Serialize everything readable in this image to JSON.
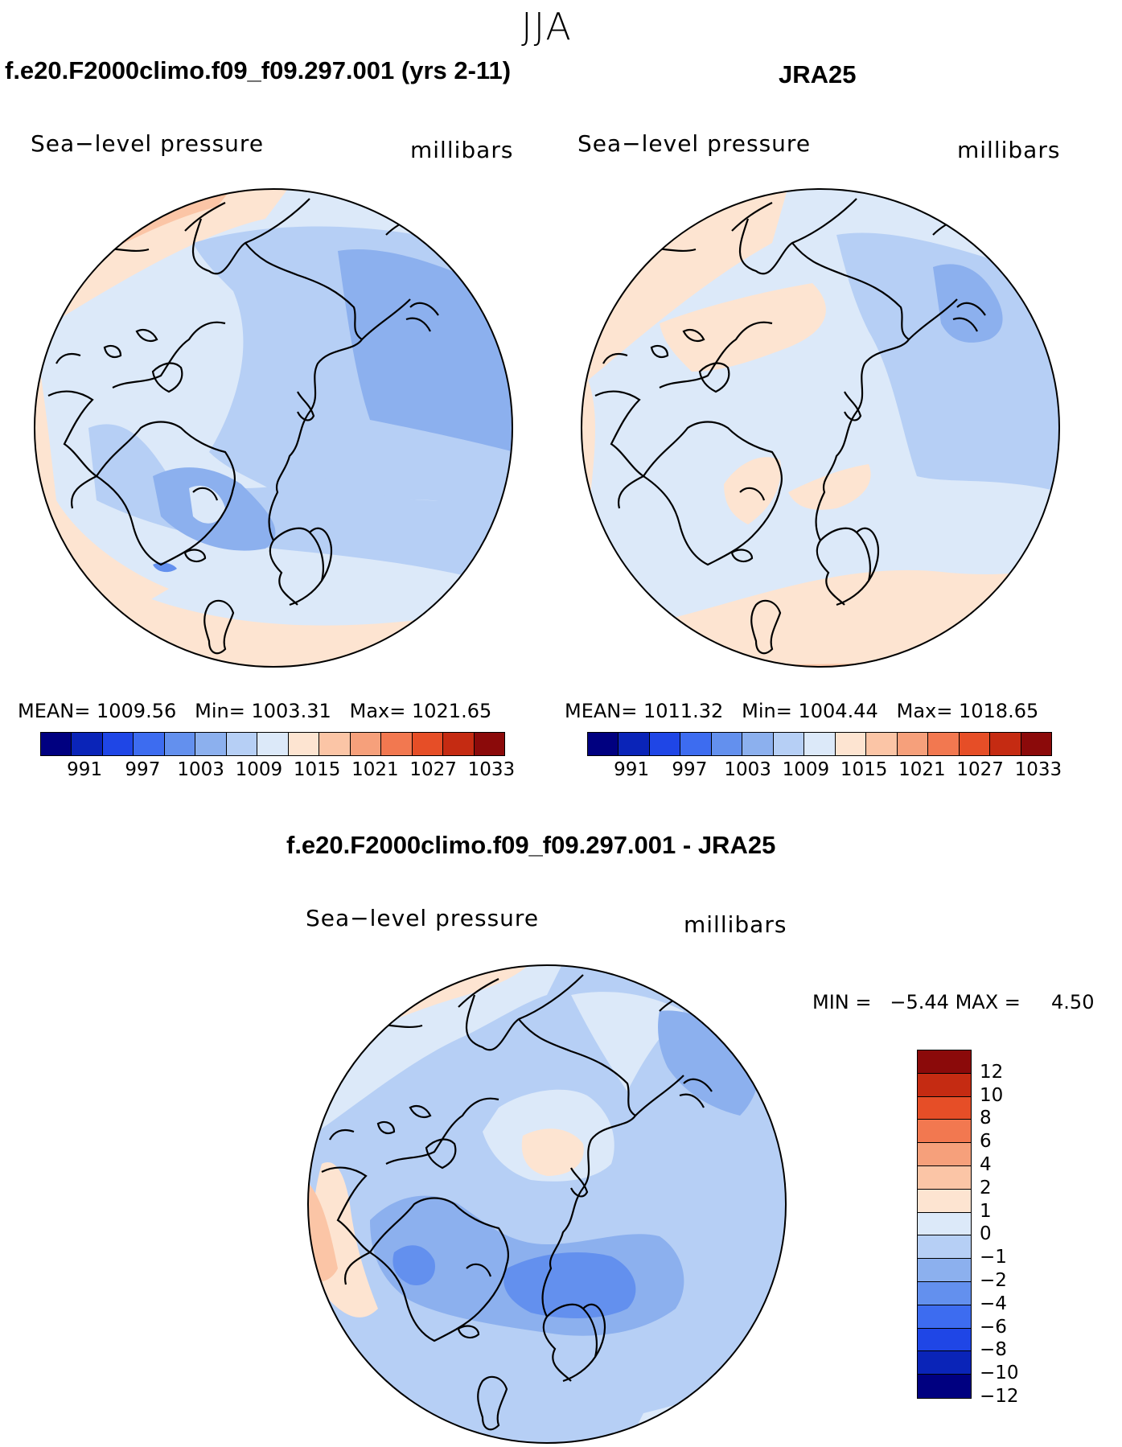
{
  "figure": {
    "season": "JJA",
    "difference_title": "f.e20.F2000climo.f09_f09.297.001 - JRA25"
  },
  "panels": [
    {
      "title": "f.e20.F2000climo.f09_f09.297.001 (yrs 2-11)",
      "variable": "Sea−level pressure",
      "units": "millibars",
      "mean_label": "MEAN=",
      "mean_value": "1009.56",
      "min_label": "Min=",
      "min_value": "1003.31",
      "max_label": "Max=",
      "max_value": "1021.65"
    },
    {
      "title": "JRA25",
      "variable": "Sea−level pressure",
      "units": "millibars",
      "mean_label": "MEAN=",
      "mean_value": "1011.32",
      "min_label": "Min=",
      "min_value": "1004.44",
      "max_label": "Max=",
      "max_value": "1018.65"
    },
    {
      "variable": "Sea−level pressure",
      "units": "millibars",
      "min_label": "MIN =",
      "min_value": "−5.44",
      "max_label": "MAX =",
      "max_value": "4.50"
    }
  ],
  "abs_colorbar": {
    "colors": [
      "#000080",
      "#0a24b8",
      "#1f46e6",
      "#3d6cf0",
      "#6390ee",
      "#8cb0ee",
      "#b6cff5",
      "#dce9f9",
      "#fde4d1",
      "#fbc5a6",
      "#f6a07b",
      "#f27850",
      "#e64e27",
      "#c52b12",
      "#8b0a0a"
    ],
    "labels": [
      "991",
      "997",
      "1003",
      "1009",
      "1015",
      "1021",
      "1027",
      "1033"
    ]
  },
  "diff_colorbar": {
    "colors": [
      "#8b0a0a",
      "#c52b12",
      "#e64e27",
      "#f27850",
      "#f6a07b",
      "#fbc5a6",
      "#fde4d1",
      "#dce9f9",
      "#b6cff5",
      "#8cb0ee",
      "#6390ee",
      "#3d6cf0",
      "#1f46e6",
      "#0a24b8",
      "#000080"
    ],
    "labels": [
      "12",
      "10",
      "8",
      "6",
      "4",
      "2",
      "1",
      "0",
      "−1",
      "−2",
      "−4",
      "−6",
      "−8",
      "−10",
      "−12"
    ]
  },
  "chart_data": {
    "type": "map",
    "projection": "north polar stereographic",
    "season": "JJA",
    "maps": [
      {
        "name": "f.e20.F2000climo.f09_f09.297.001 (yrs 2-11)",
        "field": "Sea-level pressure",
        "units": "millibars",
        "mean": 1009.56,
        "min": 1003.31,
        "max": 1021.65,
        "contour_levels": [
          988,
          991,
          994,
          997,
          1000,
          1003,
          1006,
          1009,
          1012,
          1015,
          1018,
          1021,
          1024,
          1027,
          1030,
          1033
        ]
      },
      {
        "name": "JRA25",
        "field": "Sea-level pressure",
        "units": "millibars",
        "mean": 1011.32,
        "min": 1004.44,
        "max": 1018.65,
        "contour_levels": [
          988,
          991,
          994,
          997,
          1000,
          1003,
          1006,
          1009,
          1012,
          1015,
          1018,
          1021,
          1024,
          1027,
          1030,
          1033
        ]
      },
      {
        "name": "f.e20.F2000climo.f09_f09.297.001 - JRA25",
        "field": "Sea-level pressure difference",
        "units": "millibars",
        "min": -5.44,
        "max": 4.5,
        "contour_levels": [
          -12,
          -10,
          -8,
          -6,
          -4,
          -2,
          -1,
          0,
          1,
          2,
          4,
          6,
          8,
          10,
          12
        ]
      }
    ]
  }
}
